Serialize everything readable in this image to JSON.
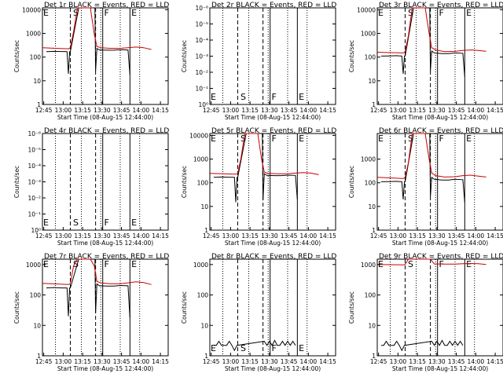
{
  "colors": {
    "background": "#ffffff",
    "events": "#000000",
    "lld": "#cc0000",
    "text": "#000000"
  },
  "x_tick_labels": [
    "12:45",
    "13:00",
    "13:15",
    "13:30",
    "13:45",
    "14:00",
    "14:15"
  ],
  "x_axis_label": "Start Time (08-Aug-15 12:44:00)",
  "y_axis_label": "Counts/sec",
  "chart_data": [
    {
      "type": "line",
      "title": "Det 1r BLACK = Events, RED = LLD",
      "ylog": true,
      "ylim": [
        1,
        12000
      ],
      "y_ticks": [
        1,
        10,
        100,
        1000,
        10000
      ],
      "y_tick_labels": [
        "1",
        "10",
        "100",
        "1000",
        "10000"
      ],
      "xlim_minutes": [
        0,
        97
      ],
      "dotted_lines": [
        10,
        30,
        45,
        60,
        75
      ],
      "dashed_lines": [
        21.5,
        41
      ],
      "solid_lines": [
        46.5,
        67.5
      ],
      "markers": [
        {
          "letter": "E",
          "x": 0
        },
        {
          "letter": "S",
          "x": 23
        },
        {
          "letter": "F",
          "x": 47
        },
        {
          "letter": "E",
          "x": 68
        }
      ],
      "series": [
        {
          "name": "BLACK = Events",
          "color": "#000000",
          "x": [
            3,
            9,
            15,
            19,
            20,
            21,
            21.5,
            28,
            35,
            40.5,
            41,
            42,
            44,
            50,
            55,
            60,
            66,
            67.5
          ],
          "y": [
            170,
            175,
            172,
            170,
            20,
            170,
            170,
            12000,
            12000,
            12000,
            25,
            230,
            200,
            195,
            195,
            205,
            200,
            18
          ]
        },
        {
          "name": "RED = LLD",
          "color": "#cc0000",
          "x": [
            0,
            10,
            20,
            21.5,
            24,
            27,
            32,
            37,
            40,
            42,
            45,
            52,
            60,
            66,
            72,
            78,
            84
          ],
          "y": [
            250,
            235,
            225,
            250,
            1200,
            12000,
            12000,
            12000,
            900,
            280,
            250,
            235,
            235,
            250,
            265,
            250,
            210
          ]
        }
      ]
    },
    {
      "type": "line",
      "title": "Det 2r BLACK = Events, RED = LLD",
      "ylog": true,
      "ylim": [
        1,
        1e-06
      ],
      "y_ticks": [
        1,
        0.1,
        0.01,
        0.001,
        0.0001,
        1e-05,
        1e-06
      ],
      "y_tick_labels": [
        "10⁰",
        "10⁻¹",
        "10⁻²",
        "10⁻³",
        "10⁻⁴",
        "10⁻⁵",
        "10⁻⁶"
      ],
      "xlim_minutes": [
        0,
        97
      ],
      "dotted_lines": [
        10,
        30,
        45,
        60,
        75
      ],
      "dashed_lines": [
        21.5,
        41
      ],
      "solid_lines": [
        46.5,
        67.5
      ],
      "markers": [
        {
          "letter": "E",
          "x": 0
        },
        {
          "letter": "S",
          "x": 23
        },
        {
          "letter": "F",
          "x": 47
        },
        {
          "letter": "E",
          "x": 68
        }
      ],
      "series": []
    },
    {
      "type": "line",
      "title": "Det 3r BLACK = Events, RED = LLD",
      "ylog": true,
      "ylim": [
        1,
        12000
      ],
      "y_ticks": [
        1,
        10,
        100,
        1000,
        10000
      ],
      "y_tick_labels": [
        "1",
        "10",
        "100",
        "1000",
        "10000"
      ],
      "xlim_minutes": [
        0,
        97
      ],
      "dotted_lines": [
        10,
        30,
        45,
        60,
        75
      ],
      "dashed_lines": [
        21.5,
        41
      ],
      "solid_lines": [
        46.5,
        67.5
      ],
      "markers": [
        {
          "letter": "E",
          "x": 0
        },
        {
          "letter": "S",
          "x": 23
        },
        {
          "letter": "F",
          "x": 47
        },
        {
          "letter": "E",
          "x": 68
        }
      ],
      "series": [
        {
          "name": "BLACK = Events",
          "color": "#000000",
          "x": [
            3,
            9,
            15,
            19,
            20,
            21,
            21.5,
            28,
            35,
            40.5,
            41,
            42,
            44,
            50,
            55,
            60,
            66,
            67.5
          ],
          "y": [
            110,
            112,
            115,
            110,
            20,
            110,
            110,
            12000,
            12000,
            12000,
            25,
            180,
            150,
            140,
            140,
            150,
            145,
            15
          ]
        },
        {
          "name": "RED = LLD",
          "color": "#cc0000",
          "x": [
            0,
            10,
            20,
            21.5,
            24,
            27,
            32,
            37,
            40,
            42,
            45,
            52,
            60,
            66,
            72,
            78,
            84
          ],
          "y": [
            160,
            155,
            150,
            170,
            800,
            12000,
            12000,
            12000,
            1000,
            250,
            200,
            170,
            175,
            190,
            200,
            190,
            175
          ]
        }
      ]
    },
    {
      "type": "line",
      "title": "Det 4r BLACK = Events, RED = LLD",
      "ylog": true,
      "ylim": [
        1,
        1e-06
      ],
      "y_ticks": [
        1,
        0.1,
        0.01,
        0.001,
        0.0001,
        1e-05,
        1e-06
      ],
      "y_tick_labels": [
        "10⁰",
        "10⁻¹",
        "10⁻²",
        "10⁻³",
        "10⁻⁴",
        "10⁻⁵",
        "10⁻⁶"
      ],
      "xlim_minutes": [
        0,
        97
      ],
      "dotted_lines": [
        10,
        30,
        45,
        60,
        75
      ],
      "dashed_lines": [
        21.5,
        41
      ],
      "solid_lines": [
        46.5,
        67.5
      ],
      "markers": [
        {
          "letter": "E",
          "x": 0
        },
        {
          "letter": "S",
          "x": 23
        },
        {
          "letter": "F",
          "x": 47
        },
        {
          "letter": "E",
          "x": 68
        }
      ],
      "series": []
    },
    {
      "type": "line",
      "title": "Det 5r BLACK = Events, RED = LLD",
      "ylog": true,
      "ylim": [
        1,
        12000
      ],
      "y_ticks": [
        1,
        10,
        100,
        1000,
        10000
      ],
      "y_tick_labels": [
        "1",
        "10",
        "100",
        "1000",
        "10000"
      ],
      "xlim_minutes": [
        0,
        97
      ],
      "dotted_lines": [
        10,
        30,
        45,
        60,
        75
      ],
      "dashed_lines": [
        21.5,
        41
      ],
      "solid_lines": [
        46.5,
        67.5
      ],
      "markers": [
        {
          "letter": "E",
          "x": 0
        },
        {
          "letter": "S",
          "x": 23
        },
        {
          "letter": "F",
          "x": 47
        },
        {
          "letter": "E",
          "x": 68
        }
      ],
      "series": [
        {
          "name": "BLACK = Events",
          "color": "#000000",
          "x": [
            3,
            9,
            15,
            19,
            20,
            21,
            21.5,
            28,
            35,
            40.5,
            41,
            42,
            44,
            50,
            55,
            60,
            66,
            67.5
          ],
          "y": [
            170,
            175,
            172,
            170,
            15,
            170,
            170,
            12000,
            12000,
            12000,
            18,
            240,
            205,
            200,
            200,
            210,
            205,
            20
          ]
        },
        {
          "name": "RED = LLD",
          "color": "#cc0000",
          "x": [
            0,
            10,
            20,
            21.5,
            24,
            27,
            32,
            37,
            40,
            42,
            45,
            52,
            60,
            66,
            72,
            78,
            84
          ],
          "y": [
            250,
            240,
            230,
            250,
            1100,
            12000,
            12000,
            12000,
            900,
            280,
            250,
            240,
            240,
            255,
            270,
            255,
            220
          ]
        }
      ]
    },
    {
      "type": "line",
      "title": "Det 6r BLACK = Events, RED = LLD",
      "ylog": true,
      "ylim": [
        1,
        12000
      ],
      "y_ticks": [
        1,
        10,
        100,
        1000
      ],
      "y_tick_labels": [
        "1",
        "10",
        "100",
        "1000"
      ],
      "xlim_minutes": [
        0,
        97
      ],
      "dotted_lines": [
        10,
        30,
        45,
        60,
        75
      ],
      "dashed_lines": [
        21.5,
        41
      ],
      "solid_lines": [
        46.5,
        67.5
      ],
      "markers": [
        {
          "letter": "E",
          "x": 0
        },
        {
          "letter": "S",
          "x": 23
        },
        {
          "letter": "F",
          "x": 47
        },
        {
          "letter": "E",
          "x": 68
        }
      ],
      "series": [
        {
          "name": "BLACK = Events",
          "color": "#000000",
          "x": [
            3,
            9,
            15,
            19,
            20,
            21,
            21.5,
            28,
            35,
            40.5,
            41,
            42,
            44,
            50,
            55,
            60,
            66,
            67.5
          ],
          "y": [
            110,
            112,
            115,
            110,
            20,
            110,
            110,
            12000,
            12000,
            12000,
            25,
            170,
            140,
            130,
            130,
            140,
            135,
            15
          ]
        },
        {
          "name": "RED = LLD",
          "color": "#cc0000",
          "x": [
            0,
            10,
            20,
            21.5,
            24,
            27,
            32,
            37,
            40,
            42,
            45,
            52,
            60,
            66,
            72,
            78,
            84
          ],
          "y": [
            170,
            160,
            150,
            170,
            700,
            12000,
            12000,
            12000,
            1000,
            260,
            200,
            175,
            180,
            200,
            210,
            190,
            175
          ]
        }
      ]
    },
    {
      "type": "line",
      "title": "Det 7r BLACK = Events, RED = LLD",
      "ylog": true,
      "ylim": [
        1,
        1500
      ],
      "y_ticks": [
        1,
        10,
        100,
        1000
      ],
      "y_tick_labels": [
        "1",
        "10",
        "100",
        "1000"
      ],
      "xlim_minutes": [
        0,
        97
      ],
      "dotted_lines": [
        10,
        30,
        45,
        60,
        75
      ],
      "dashed_lines": [
        21.5,
        41
      ],
      "solid_lines": [
        46.5,
        67.5
      ],
      "markers": [
        {
          "letter": "E",
          "x": 0
        },
        {
          "letter": "S",
          "x": 23
        },
        {
          "letter": "F",
          "x": 47
        },
        {
          "letter": "E",
          "x": 68
        }
      ],
      "series": [
        {
          "name": "BLACK = Events",
          "color": "#000000",
          "x": [
            3,
            9,
            15,
            19,
            20,
            21,
            21.5,
            28,
            35,
            40.5,
            41,
            42,
            44,
            50,
            55,
            60,
            66,
            67.5
          ],
          "y": [
            170,
            175,
            170,
            170,
            20,
            170,
            170,
            1500,
            1500,
            1500,
            25,
            230,
            200,
            195,
            195,
            205,
            200,
            18
          ]
        },
        {
          "name": "RED = LLD",
          "color": "#cc0000",
          "x": [
            0,
            10,
            20,
            21.5,
            24,
            27,
            32,
            37,
            40,
            42,
            45,
            52,
            60,
            66,
            72,
            78,
            84
          ],
          "y": [
            240,
            230,
            220,
            240,
            900,
            1500,
            1500,
            1500,
            900,
            280,
            250,
            235,
            235,
            250,
            270,
            255,
            220
          ]
        }
      ]
    },
    {
      "type": "line",
      "title": "Det 8r BLACK = Events, RED = LLD",
      "ylog": true,
      "ylim": [
        1,
        1500
      ],
      "y_ticks": [
        1,
        10,
        100,
        1000
      ],
      "y_tick_labels": [
        "1",
        "10",
        "100",
        "1000"
      ],
      "xlim_minutes": [
        0,
        97
      ],
      "dotted_lines": [
        10,
        30,
        45,
        60,
        75
      ],
      "dashed_lines": [
        21.5,
        41
      ],
      "solid_lines": [
        46.5,
        67.5
      ],
      "markers": [
        {
          "letter": "E",
          "x": 0
        },
        {
          "letter": "S",
          "x": 23
        },
        {
          "letter": "F",
          "x": 47
        },
        {
          "letter": "E",
          "x": 68
        }
      ],
      "series": [
        {
          "name": "BLACK = Events",
          "color": "#000000",
          "x": [
            3,
            5,
            7,
            9,
            11,
            13,
            15,
            17,
            19,
            21,
            42,
            44,
            46,
            48,
            50,
            52,
            54,
            56,
            58,
            60,
            62,
            64,
            66
          ],
          "y": [
            2.2,
            2.2,
            3,
            2.2,
            2.2,
            2.2,
            3,
            2.2,
            1.5,
            2.2,
            3,
            2.2,
            3,
            2.2,
            3.2,
            2.2,
            2.2,
            3,
            2.2,
            3,
            2.2,
            3,
            2.2
          ]
        }
      ]
    },
    {
      "type": "line",
      "title": "Det 9r BLACK = Events, RED = LLD",
      "ylog": true,
      "ylim": [
        1,
        1500
      ],
      "y_ticks": [
        1,
        10,
        100,
        1000
      ],
      "y_tick_labels": [
        "1",
        "10",
        "100",
        "1000"
      ],
      "xlim_minutes": [
        0,
        97
      ],
      "dotted_lines": [
        10,
        30,
        45,
        60,
        75
      ],
      "dashed_lines": [
        21.5,
        41
      ],
      "solid_lines": [
        46.5,
        67.5
      ],
      "markers": [
        {
          "letter": "E",
          "x": 0
        },
        {
          "letter": "S",
          "x": 23
        },
        {
          "letter": "F",
          "x": 47
        },
        {
          "letter": "E",
          "x": 68
        }
      ],
      "series": [
        {
          "name": "BLACK = Events",
          "color": "#000000",
          "x": [
            3,
            5,
            7,
            9,
            11,
            13,
            15,
            17,
            19,
            21,
            42,
            44,
            46,
            48,
            50,
            52,
            54,
            56,
            58,
            60,
            62,
            64,
            66
          ],
          "y": [
            2.2,
            2.2,
            3,
            2.2,
            2.2,
            2.2,
            3,
            2.2,
            1.5,
            2.2,
            3,
            2.2,
            3,
            2.2,
            3.2,
            2.2,
            2.2,
            3,
            2.2,
            3,
            2.2,
            3,
            2.2
          ]
        },
        {
          "name": "RED = LLD",
          "color": "#cc0000",
          "x": [
            0,
            10,
            20,
            21.5,
            24,
            41,
            44,
            52,
            60,
            66,
            72,
            78,
            84
          ],
          "y": [
            1000,
            990,
            980,
            1000,
            1500,
            1500,
            1050,
            1040,
            1040,
            1060,
            1080,
            1060,
            1000
          ]
        }
      ]
    }
  ]
}
